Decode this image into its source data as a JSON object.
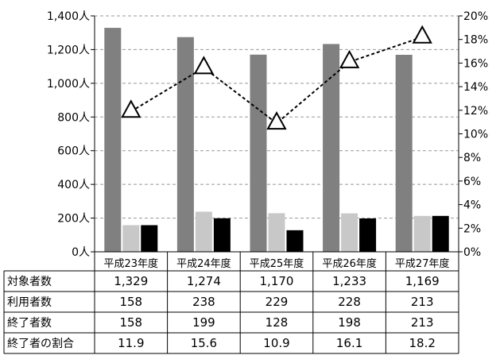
{
  "chart_data": {
    "type": "bar",
    "categories": [
      "平成23年度",
      "平成24年度",
      "平成25年度",
      "平成26年度",
      "平成27年度"
    ],
    "series": [
      {
        "name": "対象者数",
        "values": [
          1329,
          1274,
          1170,
          1233,
          1169
        ],
        "color": "#808080",
        "axis": "left"
      },
      {
        "name": "利用者数",
        "values": [
          158,
          238,
          229,
          228,
          213
        ],
        "color": "#c8c8c8",
        "axis": "left"
      },
      {
        "name": "終了者数",
        "values": [
          158,
          199,
          128,
          198,
          213
        ],
        "color": "#000000",
        "axis": "left"
      },
      {
        "name": "終了者の割合",
        "values": [
          11.9,
          15.6,
          10.9,
          16.1,
          18.2
        ],
        "type": "line",
        "marker": "triangle",
        "line_style": "dashed",
        "axis": "right"
      }
    ],
    "table_display": [
      [
        "1,329",
        "1,274",
        "1,170",
        "1,233",
        "1,169"
      ],
      [
        "158",
        "238",
        "229",
        "228",
        "213"
      ],
      [
        "158",
        "199",
        "128",
        "198",
        "213"
      ],
      [
        "11.9",
        "15.6",
        "10.9",
        "16.1",
        "18.2"
      ]
    ],
    "y_left": {
      "ylim": [
        0,
        1400
      ],
      "ticks": [
        0,
        200,
        400,
        600,
        800,
        1000,
        1200,
        1400
      ],
      "tick_labels": [
        "0人",
        "200人",
        "400人",
        "600人",
        "800人",
        "1,000人",
        "1,200人",
        "1,400人"
      ]
    },
    "y_right": {
      "ylim": [
        0,
        20
      ],
      "ticks": [
        0,
        2,
        4,
        6,
        8,
        10,
        12,
        14,
        16,
        18,
        20
      ],
      "tick_labels": [
        "0%",
        "2%",
        "4%",
        "6%",
        "8%",
        "10%",
        "12%",
        "14%",
        "16%",
        "18%",
        "20%"
      ]
    },
    "grid": true,
    "legend": "data-table"
  }
}
